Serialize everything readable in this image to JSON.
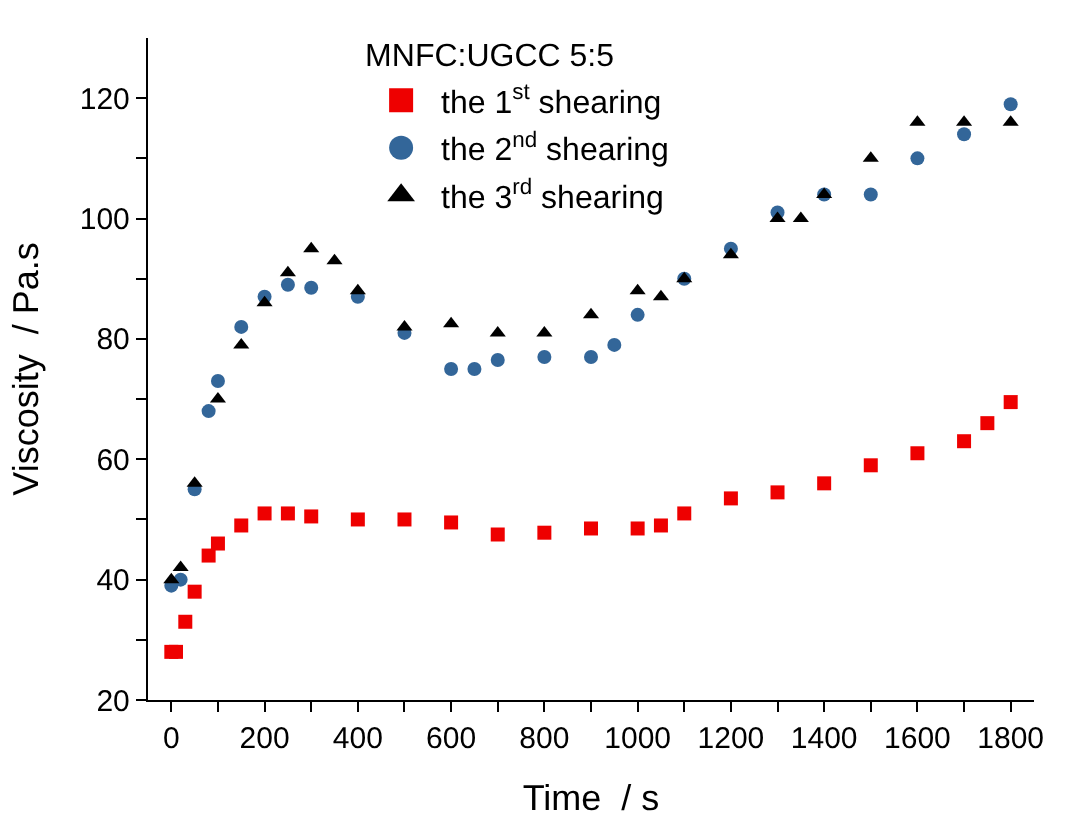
{
  "chart_data": {
    "type": "scatter",
    "xlabel": "Time  / s",
    "ylabel": "Viscosity  / Pa.s",
    "legend_title": "MNFC:UGCC 5:5",
    "legend": "top",
    "xlim": [
      -50,
      1850
    ],
    "ylim": [
      20,
      130
    ],
    "xticks": [
      0,
      {
        "value": 100,
        "label": null
      },
      200,
      {
        "value": 300,
        "label": null
      },
      400,
      {
        "value": 500,
        "label": null
      },
      600,
      {
        "value": 700,
        "label": null
      },
      800,
      {
        "value": 900,
        "label": null
      },
      1000,
      {
        "value": 1100,
        "label": null
      },
      1200,
      {
        "value": 1300,
        "label": null
      },
      1400,
      {
        "value": 1500,
        "label": null
      },
      1600,
      {
        "value": 1700,
        "label": null
      },
      1800
    ],
    "yticks": [
      20,
      {
        "value": 30,
        "label": null
      },
      40,
      {
        "value": 50,
        "label": null
      },
      60,
      {
        "value": 70,
        "label": null
      },
      80,
      {
        "value": 90,
        "label": null
      },
      100,
      {
        "value": 110,
        "label": null
      },
      120
    ],
    "series": [
      {
        "name": "the 1$^{st}$ shearing",
        "color": "#ee0000",
        "marker": "square",
        "x": [
          0,
          10,
          30,
          50,
          80,
          100,
          150,
          200,
          250,
          300,
          400,
          500,
          600,
          700,
          800,
          900,
          1000,
          1050,
          1100,
          1200,
          1300,
          1400,
          1500,
          1600,
          1700,
          1750,
          1800
        ],
        "values": [
          28,
          28,
          33,
          38,
          44,
          46,
          49,
          51,
          51,
          50.5,
          50,
          50,
          49.5,
          47.5,
          47.8,
          48.5,
          48.5,
          49,
          51,
          53.5,
          54.5,
          56,
          59,
          61,
          63,
          66,
          69.5
        ]
      },
      {
        "name": "the 2$^{nd}$ shearing",
        "color": "#336699",
        "marker": "circle",
        "x": [
          0,
          20,
          50,
          80,
          100,
          150,
          200,
          250,
          300,
          400,
          500,
          600,
          650,
          700,
          800,
          900,
          950,
          1000,
          1100,
          1200,
          1300,
          1400,
          1500,
          1600,
          1700,
          1800
        ],
        "values": [
          39,
          40,
          55,
          68,
          73,
          82,
          87,
          89,
          88.5,
          87,
          81,
          75,
          75,
          76.5,
          77,
          77,
          79,
          84,
          90,
          95,
          101,
          104,
          104,
          110,
          114,
          119
        ]
      },
      {
        "name": "the 3$^{rd}$ shearing",
        "color": "#000000",
        "marker": "triangle",
        "x": [
          0,
          20,
          50,
          100,
          150,
          200,
          250,
          300,
          350,
          400,
          500,
          600,
          700,
          800,
          900,
          1000,
          1050,
          1100,
          1200,
          1300,
          1350,
          1400,
          1500,
          1600,
          1700,
          1800
        ],
        "values": [
          40,
          42,
          56,
          70,
          79,
          86,
          91,
          95,
          93,
          88,
          82,
          82.5,
          81,
          81,
          84,
          88,
          87,
          90,
          94,
          100,
          100,
          104,
          110,
          116,
          116,
          116
        ]
      }
    ]
  }
}
